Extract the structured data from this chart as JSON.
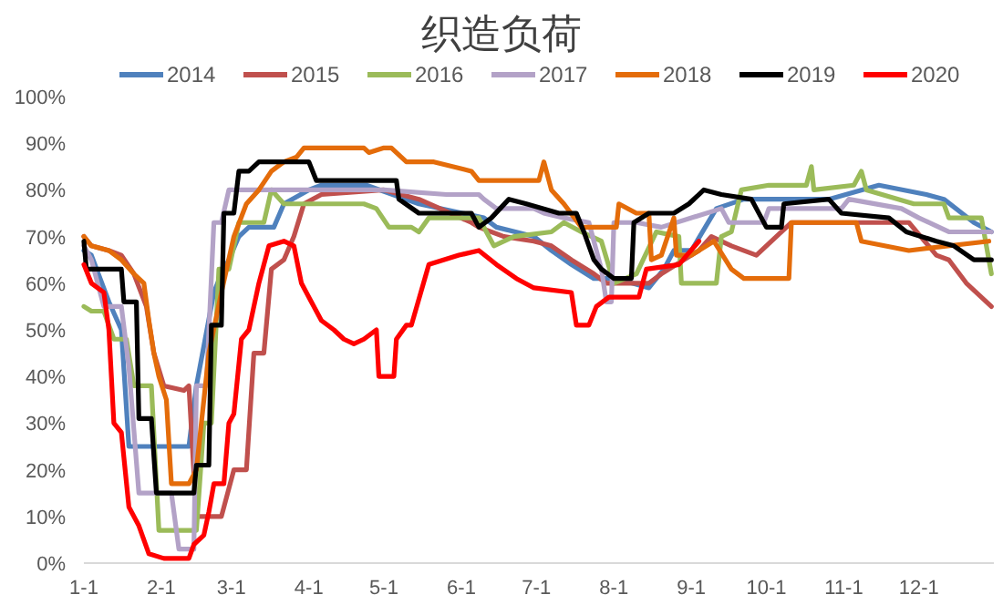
{
  "chart_data": {
    "type": "line",
    "title": "织造负荷",
    "xlim": [
      "--01-01",
      "--12-31"
    ],
    "xticks": [
      {
        "value": "--01-01",
        "label": "1-1"
      },
      {
        "value": "--02-01",
        "label": "2-1"
      },
      {
        "value": "--03-01",
        "label": "3-1"
      },
      {
        "value": "--04-01",
        "label": "4-1"
      },
      {
        "value": "--05-01",
        "label": "5-1"
      },
      {
        "value": "--06-01",
        "label": "6-1"
      },
      {
        "value": "--07-01",
        "label": "7-1"
      },
      {
        "value": "--08-01",
        "label": "8-1"
      },
      {
        "value": "--09-01",
        "label": "9-1"
      },
      {
        "value": "--10-01",
        "label": "10-1"
      },
      {
        "value": "--11-01",
        "label": "11-1"
      },
      {
        "value": "--12-01",
        "label": "12-1"
      }
    ],
    "ylim": [
      0,
      100
    ],
    "yticks": [
      {
        "value": 0,
        "label": "0%"
      },
      {
        "value": 10,
        "label": "10%"
      },
      {
        "value": 20,
        "label": "20%"
      },
      {
        "value": 30,
        "label": "30%"
      },
      {
        "value": 40,
        "label": "40%"
      },
      {
        "value": 50,
        "label": "50%"
      },
      {
        "value": 60,
        "label": "60%"
      },
      {
        "value": 70,
        "label": "70%"
      },
      {
        "value": 80,
        "label": "80%"
      },
      {
        "value": 90,
        "label": "90%"
      },
      {
        "value": 100,
        "label": "100%"
      }
    ],
    "grid": false,
    "legend": "top",
    "marker": "none",
    "line_style": "solid",
    "series": [
      {
        "name": "2014",
        "color": "#4f81bd",
        "x": [
          "--01-01",
          "--01-04",
          "--01-11",
          "--01-16",
          "--01-19",
          "--02-12",
          "--02-15",
          "--02-22",
          "--02-25",
          "--02-28",
          "--03-04",
          "--03-08",
          "--03-18",
          "--03-22",
          "--04-01",
          "--04-06",
          "--04-24",
          "--05-15",
          "--06-10",
          "--06-15",
          "--06-30",
          "--07-07",
          "--07-15",
          "--07-24",
          "--08-02",
          "--08-15",
          "--08-21",
          "--08-25",
          "--09-01",
          "--09-11",
          "--09-22",
          "--10-26",
          "--11-15",
          "--12-04",
          "--12-11",
          "--12-23",
          "--12-30"
        ],
        "values": [
          67,
          66,
          56,
          50,
          25,
          25,
          38,
          58,
          62,
          65,
          70,
          72,
          72,
          77,
          80,
          81,
          81,
          77,
          74,
          72,
          70,
          67,
          64,
          61,
          61,
          59,
          63,
          67,
          67,
          76,
          78,
          78,
          81,
          79,
          78,
          73,
          71
        ]
      },
      {
        "name": "2015",
        "color": "#c0504d",
        "x": [
          "--01-01",
          "--01-04",
          "--01-11",
          "--01-16",
          "--01-21",
          "--01-26",
          "--01-29",
          "--02-02",
          "--02-10",
          "--02-12",
          "--02-15",
          "--02-25",
          "--03-02",
          "--03-07",
          "--03-10",
          "--03-14",
          "--03-17",
          "--03-22",
          "--03-26",
          "--03-30",
          "--04-06",
          "--05-01",
          "--05-15",
          "--06-05",
          "--06-08",
          "--06-18",
          "--06-30",
          "--07-07",
          "--07-15",
          "--07-24",
          "--07-29",
          "--08-15",
          "--08-20",
          "--09-04",
          "--09-09",
          "--09-17",
          "--09-27",
          "--10-11",
          "--11-27",
          "--12-08",
          "--12-13",
          "--12-20",
          "--12-30"
        ],
        "values": [
          70,
          68,
          67,
          66,
          62,
          55,
          45,
          38,
          37,
          38,
          10,
          10,
          20,
          20,
          45,
          45,
          63,
          65,
          70,
          77,
          79,
          80,
          78,
          73,
          72,
          70,
          69,
          68,
          65,
          62,
          60,
          60,
          62,
          67,
          70,
          68,
          66,
          73,
          73,
          66,
          65,
          60,
          55
        ]
      },
      {
        "name": "2016",
        "color": "#9bbb59",
        "x": [
          "--01-01",
          "--01-04",
          "--01-09",
          "--01-13",
          "--01-18",
          "--01-21",
          "--01-28",
          "--01-31",
          "--02-15",
          "--02-18",
          "--02-21",
          "--02-24",
          "--02-28",
          "--03-04",
          "--03-14",
          "--03-17",
          "--03-22",
          "--04-06",
          "--04-23",
          "--04-28",
          "--05-03",
          "--05-12",
          "--05-15",
          "--05-19",
          "--06-08",
          "--06-14",
          "--06-22",
          "--07-07",
          "--07-12",
          "--07-19",
          "--07-27",
          "--08-01",
          "--08-10",
          "--08-18",
          "--08-27",
          "--08-28",
          "--09-11",
          "--09-13",
          "--09-17",
          "--09-21",
          "--10-02",
          "--10-17",
          "--10-19",
          "--10-20",
          "--11-05",
          "--11-08",
          "--11-10",
          "--11-29",
          "--12-11",
          "--12-13",
          "--12-26",
          "--12-30"
        ],
        "values": [
          55,
          54,
          54,
          48,
          48,
          38,
          38,
          7,
          7,
          30,
          30,
          63,
          63,
          73,
          73,
          80,
          77,
          77,
          77,
          76,
          72,
          72,
          71,
          74,
          74,
          68,
          70,
          71,
          73,
          71,
          69,
          60,
          62,
          71,
          70,
          60,
          60,
          70,
          71,
          80,
          81,
          81,
          85,
          80,
          81,
          84,
          80,
          77,
          77,
          74,
          74,
          62
        ]
      },
      {
        "name": "2017",
        "color": "#b3a2c7",
        "x": [
          "--01-01",
          "--01-04",
          "--01-09",
          "--01-16",
          "--01-19",
          "--01-23",
          "--02-05",
          "--02-08",
          "--02-14",
          "--02-15",
          "--02-19",
          "--02-22",
          "--02-25",
          "--02-28",
          "--03-17",
          "--05-01",
          "--05-26",
          "--06-08",
          "--06-10",
          "--06-15",
          "--06-30",
          "--07-04",
          "--07-12",
          "--07-22",
          "--07-27",
          "--07-29",
          "--07-31",
          "--08-01",
          "--08-10",
          "--08-20",
          "--09-13",
          "--09-16",
          "--09-30",
          "--10-02",
          "--10-31",
          "--11-03",
          "--11-24",
          "--12-01",
          "--12-13",
          "--12-30"
        ],
        "values": [
          68,
          65,
          55,
          55,
          42,
          15,
          15,
          3,
          3,
          38,
          38,
          73,
          73,
          80,
          80,
          80,
          79,
          79,
          78,
          76,
          76,
          75,
          74,
          73,
          63,
          56,
          56,
          73,
          73,
          72,
          76,
          73,
          73,
          76,
          76,
          78,
          76,
          74,
          71,
          71
        ]
      },
      {
        "name": "2018",
        "color": "#e46c0a",
        "x": [
          "--01-01",
          "--01-04",
          "--01-11",
          "--01-16",
          "--01-21",
          "--01-25",
          "--01-27",
          "--01-29",
          "--01-31",
          "--02-03",
          "--02-05",
          "--02-12",
          "--02-15",
          "--02-17",
          "--02-20",
          "--02-25",
          "--03-02",
          "--03-07",
          "--03-12",
          "--03-17",
          "--03-22",
          "--03-27",
          "--03-30",
          "--04-11",
          "--04-23",
          "--04-25",
          "--05-01",
          "--05-04",
          "--05-10",
          "--05-21",
          "--06-05",
          "--06-08",
          "--07-02",
          "--07-04",
          "--07-07",
          "--07-12",
          "--07-19",
          "--08-02",
          "--08-03",
          "--08-10",
          "--08-15",
          "--08-16",
          "--08-20",
          "--08-25",
          "--08-26",
          "--09-01",
          "--09-10",
          "--09-17",
          "--09-22",
          "--10-10",
          "--10-11",
          "--11-06",
          "--11-08",
          "--11-27",
          "--12-29"
        ],
        "values": [
          70,
          68,
          67,
          65,
          62,
          60,
          52,
          45,
          40,
          35,
          17,
          17,
          20,
          30,
          45,
          58,
          70,
          77,
          80,
          84,
          86,
          87,
          89,
          89,
          89,
          88,
          89,
          89,
          86,
          86,
          84,
          82,
          82,
          86,
          80,
          77,
          72,
          72,
          77,
          75,
          75,
          65,
          66,
          74,
          66,
          66,
          69,
          63,
          61,
          61,
          73,
          73,
          69,
          67,
          69
        ]
      },
      {
        "name": "2019",
        "color": "#000000",
        "x": [
          "--01-01",
          "--01-02",
          "--01-16",
          "--01-17",
          "--01-22",
          "--01-23",
          "--01-28",
          "--01-30",
          "--02-14",
          "--02-15",
          "--02-20",
          "--02-21",
          "--02-25",
          "--02-26",
          "--03-02",
          "--03-04",
          "--03-08",
          "--03-12",
          "--04-01",
          "--04-04",
          "--05-06",
          "--05-07",
          "--05-15",
          "--06-05",
          "--06-08",
          "--06-13",
          "--06-20",
          "--06-27",
          "--07-10",
          "--07-17",
          "--07-20",
          "--07-24",
          "--07-27",
          "--08-01",
          "--08-08",
          "--08-09",
          "--08-15",
          "--08-25",
          "--08-31",
          "--09-06",
          "--09-13",
          "--09-25",
          "--10-01",
          "--10-07",
          "--10-08",
          "--10-26",
          "--10-31",
          "--11-19",
          "--11-26",
          "--12-08",
          "--12-15",
          "--12-23",
          "--12-30"
        ],
        "values": [
          69,
          63,
          63,
          56,
          56,
          31,
          31,
          15,
          15,
          21,
          21,
          51,
          51,
          75,
          75,
          84,
          84,
          86,
          86,
          82,
          82,
          78,
          75,
          75,
          72,
          74,
          78,
          77,
          75,
          75,
          71,
          65,
          63,
          61,
          61,
          73,
          75,
          75,
          77,
          80,
          79,
          78,
          72,
          72,
          77,
          78,
          75,
          74,
          71,
          69,
          68,
          65,
          65
        ]
      },
      {
        "name": "2020",
        "color": "#ff0000",
        "x": [
          "--01-01",
          "--01-04",
          "--01-09",
          "--01-11",
          "--01-13",
          "--01-16",
          "--01-19",
          "--01-23",
          "--01-27",
          "--02-02",
          "--02-12",
          "--02-14",
          "--02-18",
          "--02-20",
          "--02-22",
          "--02-26",
          "--02-28",
          "--03-02",
          "--03-05",
          "--03-08",
          "--03-12",
          "--03-16",
          "--03-22",
          "--03-26",
          "--03-29",
          "--04-01",
          "--04-06",
          "--04-11",
          "--04-15",
          "--04-19",
          "--04-23",
          "--04-28",
          "--04-29",
          "--05-05",
          "--05-06",
          "--05-10",
          "--05-12",
          "--05-19",
          "--05-31",
          "--06-08",
          "--06-15",
          "--06-23",
          "--06-30",
          "--07-15",
          "--07-17",
          "--07-22",
          "--07-25",
          "--07-30",
          "--08-11",
          "--08-14",
          "--08-27",
          "--09-04"
        ],
        "values": [
          64,
          60,
          58,
          50,
          30,
          28,
          12,
          8,
          2,
          1,
          1,
          4,
          6,
          11,
          17,
          17,
          30,
          32,
          48,
          50,
          60,
          68,
          69,
          68,
          60,
          57,
          52,
          50,
          48,
          47,
          48,
          50,
          40,
          40,
          48,
          51,
          51,
          64,
          66,
          67,
          64,
          61,
          59,
          58,
          51,
          51,
          55,
          57,
          57,
          63,
          64,
          69
        ]
      }
    ]
  }
}
